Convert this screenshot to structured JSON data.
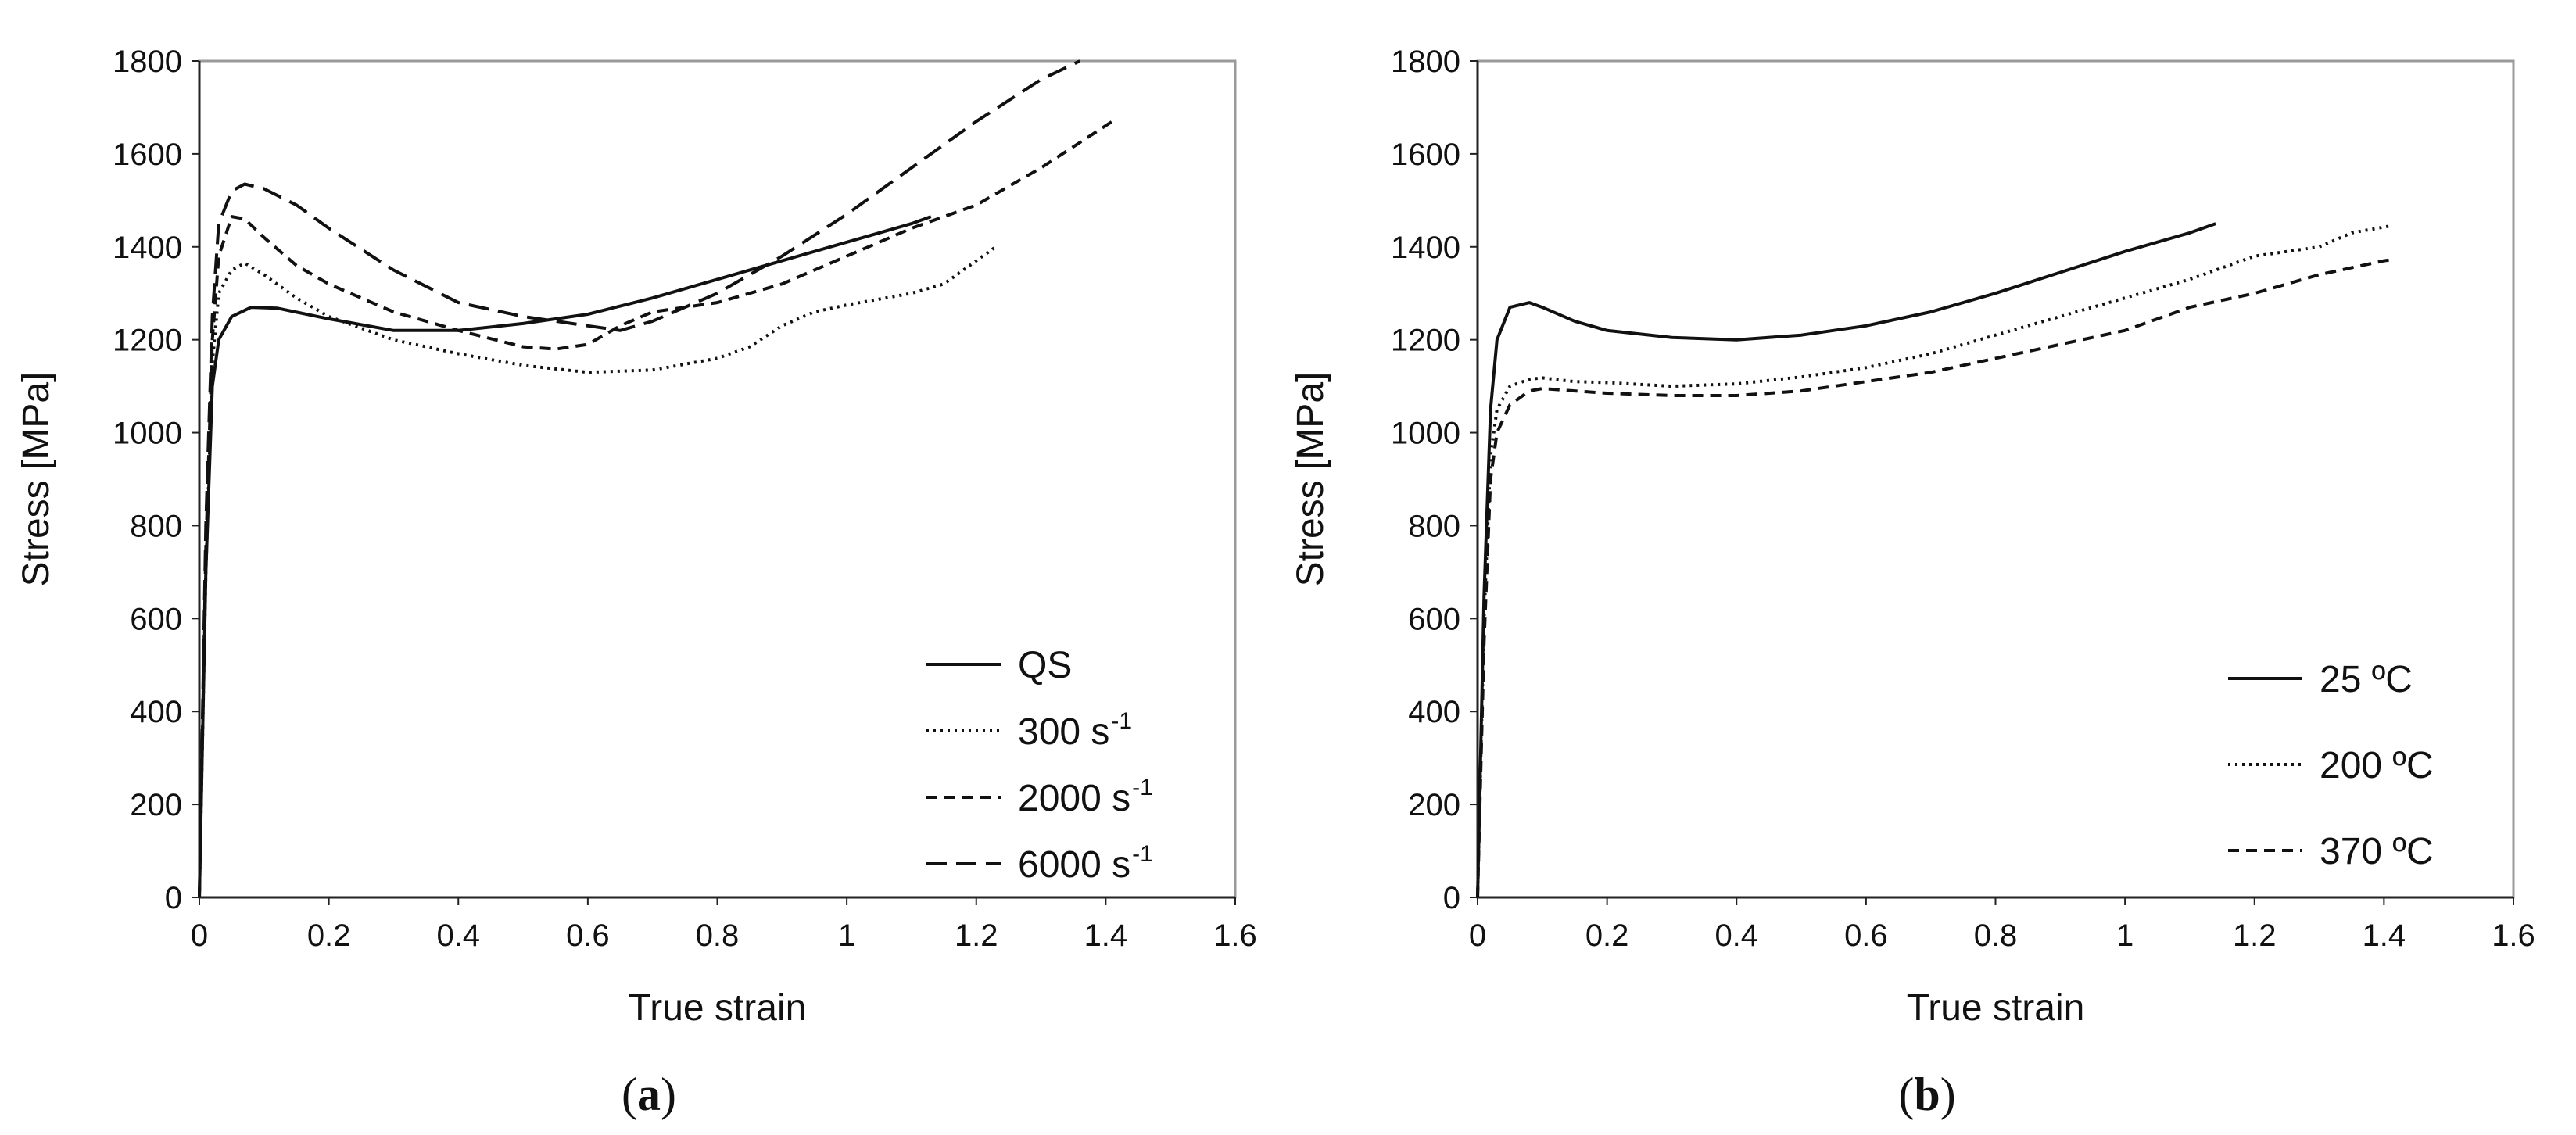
{
  "chart_data": [
    {
      "type": "line",
      "panel_label": "a",
      "xlabel": "True strain",
      "ylabel": "Stress [MPa]",
      "xlim": [
        0,
        1.6
      ],
      "ylim": [
        0,
        1800
      ],
      "xticks": [
        "0",
        "0.2",
        "0.4",
        "0.6",
        "0.8",
        "1",
        "1.2",
        "1.4",
        "1.6"
      ],
      "yticks": [
        "0",
        "200",
        "400",
        "600",
        "800",
        "1000",
        "1200",
        "1400",
        "1600",
        "1800"
      ],
      "legend_position": "bottom-right",
      "series": [
        {
          "name": "QS",
          "superscript": "",
          "style": "solid",
          "x": [
            0,
            0.01,
            0.02,
            0.03,
            0.05,
            0.08,
            0.12,
            0.2,
            0.3,
            0.4,
            0.5,
            0.6,
            0.7,
            0.8,
            0.9,
            1.0,
            1.1,
            1.13
          ],
          "y": [
            0,
            700,
            1100,
            1200,
            1250,
            1270,
            1268,
            1245,
            1220,
            1220,
            1235,
            1255,
            1290,
            1330,
            1370,
            1410,
            1450,
            1465
          ]
        },
        {
          "name": "300 s",
          "superscript": "-1",
          "style": "dotted",
          "x": [
            0,
            0.01,
            0.02,
            0.03,
            0.05,
            0.07,
            0.1,
            0.15,
            0.2,
            0.3,
            0.4,
            0.5,
            0.6,
            0.7,
            0.8,
            0.85,
            0.9,
            0.95,
            1.0,
            1.1,
            1.15,
            1.2,
            1.23
          ],
          "y": [
            0,
            700,
            1150,
            1300,
            1350,
            1365,
            1340,
            1290,
            1250,
            1200,
            1170,
            1145,
            1130,
            1135,
            1160,
            1185,
            1230,
            1260,
            1275,
            1300,
            1320,
            1370,
            1400
          ]
        },
        {
          "name": "2000 s",
          "superscript": "-1",
          "style": "dashed",
          "x": [
            0,
            0.01,
            0.02,
            0.03,
            0.05,
            0.07,
            0.1,
            0.15,
            0.2,
            0.3,
            0.4,
            0.5,
            0.55,
            0.6,
            0.65,
            0.7,
            0.8,
            0.9,
            1.0,
            1.1,
            1.2,
            1.3,
            1.41
          ],
          "y": [
            0,
            750,
            1200,
            1380,
            1465,
            1460,
            1420,
            1360,
            1320,
            1260,
            1220,
            1185,
            1180,
            1190,
            1230,
            1260,
            1280,
            1320,
            1380,
            1440,
            1490,
            1570,
            1670
          ]
        },
        {
          "name": "6000 s",
          "superscript": "-1",
          "style": "longdash",
          "x": [
            0,
            0.01,
            0.02,
            0.03,
            0.05,
            0.07,
            0.1,
            0.15,
            0.2,
            0.3,
            0.4,
            0.5,
            0.6,
            0.65,
            0.7,
            0.8,
            0.9,
            1.0,
            1.1,
            1.2,
            1.3,
            1.36
          ],
          "y": [
            0,
            800,
            1250,
            1450,
            1520,
            1535,
            1525,
            1490,
            1440,
            1350,
            1280,
            1250,
            1230,
            1220,
            1240,
            1300,
            1380,
            1470,
            1570,
            1670,
            1760,
            1800
          ]
        }
      ]
    },
    {
      "type": "line",
      "panel_label": "b",
      "xlabel": "True strain",
      "ylabel": "Stress [MPa]",
      "xlim": [
        0,
        1.6
      ],
      "ylim": [
        0,
        1800
      ],
      "xticks": [
        "0",
        "0.2",
        "0.4",
        "0.6",
        "0.8",
        "1",
        "1.2",
        "1.4",
        "1.6"
      ],
      "yticks": [
        "0",
        "200",
        "400",
        "600",
        "800",
        "1000",
        "1200",
        "1400",
        "1600",
        "1800"
      ],
      "legend_position": "bottom-right",
      "series": [
        {
          "name": "25 ºC",
          "superscript": "",
          "style": "solid",
          "x": [
            0,
            0.01,
            0.02,
            0.03,
            0.05,
            0.08,
            0.1,
            0.15,
            0.2,
            0.3,
            0.4,
            0.5,
            0.6,
            0.7,
            0.8,
            0.9,
            1.0,
            1.1,
            1.14
          ],
          "y": [
            0,
            650,
            1050,
            1200,
            1270,
            1280,
            1270,
            1240,
            1220,
            1205,
            1200,
            1210,
            1230,
            1260,
            1300,
            1345,
            1390,
            1430,
            1450
          ]
        },
        {
          "name": "200 ºC",
          "superscript": "",
          "style": "dotted",
          "x": [
            0,
            0.01,
            0.02,
            0.03,
            0.05,
            0.08,
            0.1,
            0.15,
            0.2,
            0.3,
            0.4,
            0.5,
            0.6,
            0.7,
            0.8,
            0.9,
            1.0,
            1.1,
            1.2,
            1.3,
            1.35,
            1.41
          ],
          "y": [
            0,
            600,
            950,
            1050,
            1100,
            1115,
            1118,
            1110,
            1108,
            1100,
            1105,
            1120,
            1140,
            1170,
            1210,
            1250,
            1290,
            1330,
            1380,
            1400,
            1430,
            1445
          ]
        },
        {
          "name": "370 ºC",
          "superscript": "",
          "style": "dashed",
          "x": [
            0,
            0.01,
            0.02,
            0.03,
            0.05,
            0.08,
            0.1,
            0.15,
            0.2,
            0.3,
            0.4,
            0.5,
            0.6,
            0.7,
            0.8,
            0.9,
            1.0,
            1.1,
            1.2,
            1.25,
            1.3,
            1.4,
            1.41
          ],
          "y": [
            0,
            550,
            900,
            1000,
            1060,
            1090,
            1095,
            1090,
            1085,
            1080,
            1080,
            1090,
            1110,
            1130,
            1160,
            1190,
            1220,
            1270,
            1300,
            1320,
            1340,
            1370,
            1372
          ]
        }
      ]
    }
  ]
}
